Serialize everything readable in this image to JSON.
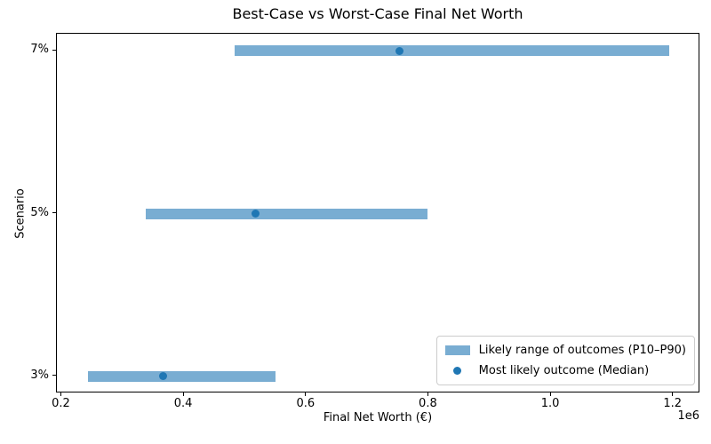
{
  "chart_data": {
    "type": "bar",
    "subtype": "horizontal-range-bars-with-median-points",
    "title": "Best-Case vs Worst-Case Final Net Worth",
    "xlabel": "Final Net Worth (€)",
    "ylabel": "Scenario",
    "categories": [
      "3%",
      "5%",
      "7%"
    ],
    "series": [
      {
        "name": "Likely range of outcomes (P10–P90)",
        "marker": "patch",
        "low": [
          243000,
          337000,
          482000
        ],
        "high": [
          550000,
          798000,
          1193000
        ]
      },
      {
        "name": "Most likely outcome (Median)",
        "marker": "dot",
        "values": [
          366000,
          516000,
          752000
        ]
      }
    ],
    "x_ticks": [
      200000,
      400000,
      600000,
      800000,
      1000000,
      1200000
    ],
    "x_tick_labels": [
      "0.2",
      "0.4",
      "0.6",
      "0.8",
      "1.0",
      "1.2"
    ],
    "x_offset_label": "1e6",
    "xlim": [
      192000,
      1244000
    ],
    "y_units_lim": [
      -0.105,
      2.105
    ],
    "grid": false,
    "legend_position": "lower right",
    "colors": {
      "range_bar": "#79ADD2",
      "median_dot": "#1F77B4",
      "text": "#000000",
      "spine": "#000000",
      "legend_border": "#CCCCCC"
    }
  }
}
